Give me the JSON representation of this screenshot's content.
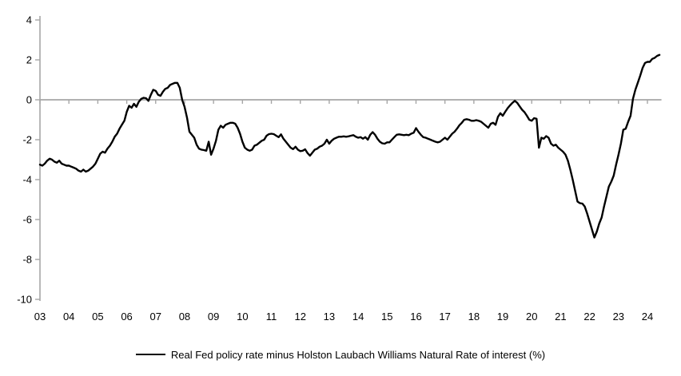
{
  "chart_data": {
    "type": "line",
    "title": "",
    "legend_label": "Real Fed policy rate minus Holston Laubach Williams Natural Rate of interest (%)",
    "legend_position": "bottom-center",
    "grid": "zero-line-only",
    "x_axis": {
      "start": "2003-01",
      "frequency": "monthly",
      "tick_labels": [
        "03",
        "04",
        "05",
        "06",
        "07",
        "08",
        "09",
        "10",
        "11",
        "12",
        "13",
        "14",
        "15",
        "16",
        "17",
        "18",
        "19",
        "20",
        "21",
        "22",
        "23",
        "24"
      ],
      "range_years": [
        2003.0,
        2024.5
      ]
    },
    "y_axis": {
      "min": -10,
      "max": 4,
      "step": 2,
      "tick_values": [
        4,
        2,
        0,
        -2,
        -4,
        -6,
        -8,
        -10
      ],
      "tick_labels": [
        "4",
        "2",
        "0",
        "-2",
        "-4",
        "-6",
        "-8",
        "-10"
      ]
    },
    "colors": {
      "line": "#000000",
      "axis": "#a6a6a6",
      "text": "#000000",
      "background": "#ffffff"
    },
    "series": [
      {
        "name": "Real Fed policy rate minus Holston Laubach Williams Natural Rate of interest (%)",
        "color": "#000000",
        "values": [
          -3.25,
          -3.3,
          -3.2,
          -3.05,
          -2.95,
          -3.0,
          -3.1,
          -3.15,
          -3.05,
          -3.2,
          -3.25,
          -3.3,
          -3.3,
          -3.35,
          -3.4,
          -3.45,
          -3.55,
          -3.6,
          -3.5,
          -3.6,
          -3.55,
          -3.45,
          -3.35,
          -3.2,
          -2.95,
          -2.7,
          -2.6,
          -2.65,
          -2.45,
          -2.3,
          -2.1,
          -1.85,
          -1.7,
          -1.45,
          -1.25,
          -1.05,
          -0.6,
          -0.3,
          -0.4,
          -0.2,
          -0.35,
          -0.1,
          0.05,
          0.1,
          0.08,
          -0.05,
          0.25,
          0.5,
          0.45,
          0.25,
          0.2,
          0.4,
          0.55,
          0.6,
          0.75,
          0.8,
          0.85,
          0.85,
          0.6,
          0.0,
          -0.35,
          -0.9,
          -1.6,
          -1.75,
          -1.9,
          -2.25,
          -2.45,
          -2.5,
          -2.52,
          -2.55,
          -2.1,
          -2.75,
          -2.45,
          -2.05,
          -1.5,
          -1.3,
          -1.4,
          -1.25,
          -1.2,
          -1.15,
          -1.15,
          -1.2,
          -1.4,
          -1.7,
          -2.1,
          -2.4,
          -2.5,
          -2.55,
          -2.5,
          -2.3,
          -2.25,
          -2.15,
          -2.05,
          -2.0,
          -1.8,
          -1.72,
          -1.7,
          -1.72,
          -1.8,
          -1.87,
          -1.73,
          -1.95,
          -2.1,
          -2.25,
          -2.4,
          -2.47,
          -2.35,
          -2.5,
          -2.57,
          -2.55,
          -2.48,
          -2.67,
          -2.8,
          -2.65,
          -2.5,
          -2.45,
          -2.35,
          -2.3,
          -2.2,
          -2.0,
          -2.2,
          -2.05,
          -1.95,
          -1.9,
          -1.85,
          -1.85,
          -1.83,
          -1.85,
          -1.83,
          -1.8,
          -1.77,
          -1.85,
          -1.9,
          -1.87,
          -1.95,
          -1.87,
          -2.0,
          -1.75,
          -1.62,
          -1.75,
          -1.95,
          -2.1,
          -2.18,
          -2.2,
          -2.13,
          -2.13,
          -2.0,
          -1.87,
          -1.75,
          -1.73,
          -1.75,
          -1.77,
          -1.75,
          -1.77,
          -1.7,
          -1.65,
          -1.42,
          -1.6,
          -1.75,
          -1.87,
          -1.9,
          -1.95,
          -2.0,
          -2.05,
          -2.1,
          -2.13,
          -2.1,
          -2.0,
          -1.9,
          -2.0,
          -1.85,
          -1.7,
          -1.6,
          -1.45,
          -1.27,
          -1.15,
          -1.0,
          -0.97,
          -1.0,
          -1.05,
          -1.05,
          -1.02,
          -1.05,
          -1.1,
          -1.2,
          -1.3,
          -1.4,
          -1.2,
          -1.15,
          -1.25,
          -0.85,
          -0.67,
          -0.8,
          -0.6,
          -0.42,
          -0.28,
          -0.15,
          -0.05,
          -0.15,
          -0.33,
          -0.5,
          -0.62,
          -0.8,
          -1.0,
          -1.05,
          -0.92,
          -0.95,
          -2.4,
          -1.9,
          -1.95,
          -1.82,
          -1.9,
          -2.2,
          -2.3,
          -2.25,
          -2.4,
          -2.5,
          -2.6,
          -2.75,
          -3.05,
          -3.5,
          -4.0,
          -4.55,
          -5.1,
          -5.18,
          -5.2,
          -5.35,
          -5.7,
          -6.1,
          -6.5,
          -6.9,
          -6.6,
          -6.2,
          -5.9,
          -5.35,
          -4.85,
          -4.35,
          -4.1,
          -3.8,
          -3.25,
          -2.75,
          -2.2,
          -1.5,
          -1.45,
          -1.1,
          -0.8,
          0.05,
          0.5,
          0.85,
          1.2,
          1.6,
          1.85,
          1.9,
          1.9,
          2.05,
          2.1,
          2.2,
          2.25
        ]
      }
    ]
  }
}
